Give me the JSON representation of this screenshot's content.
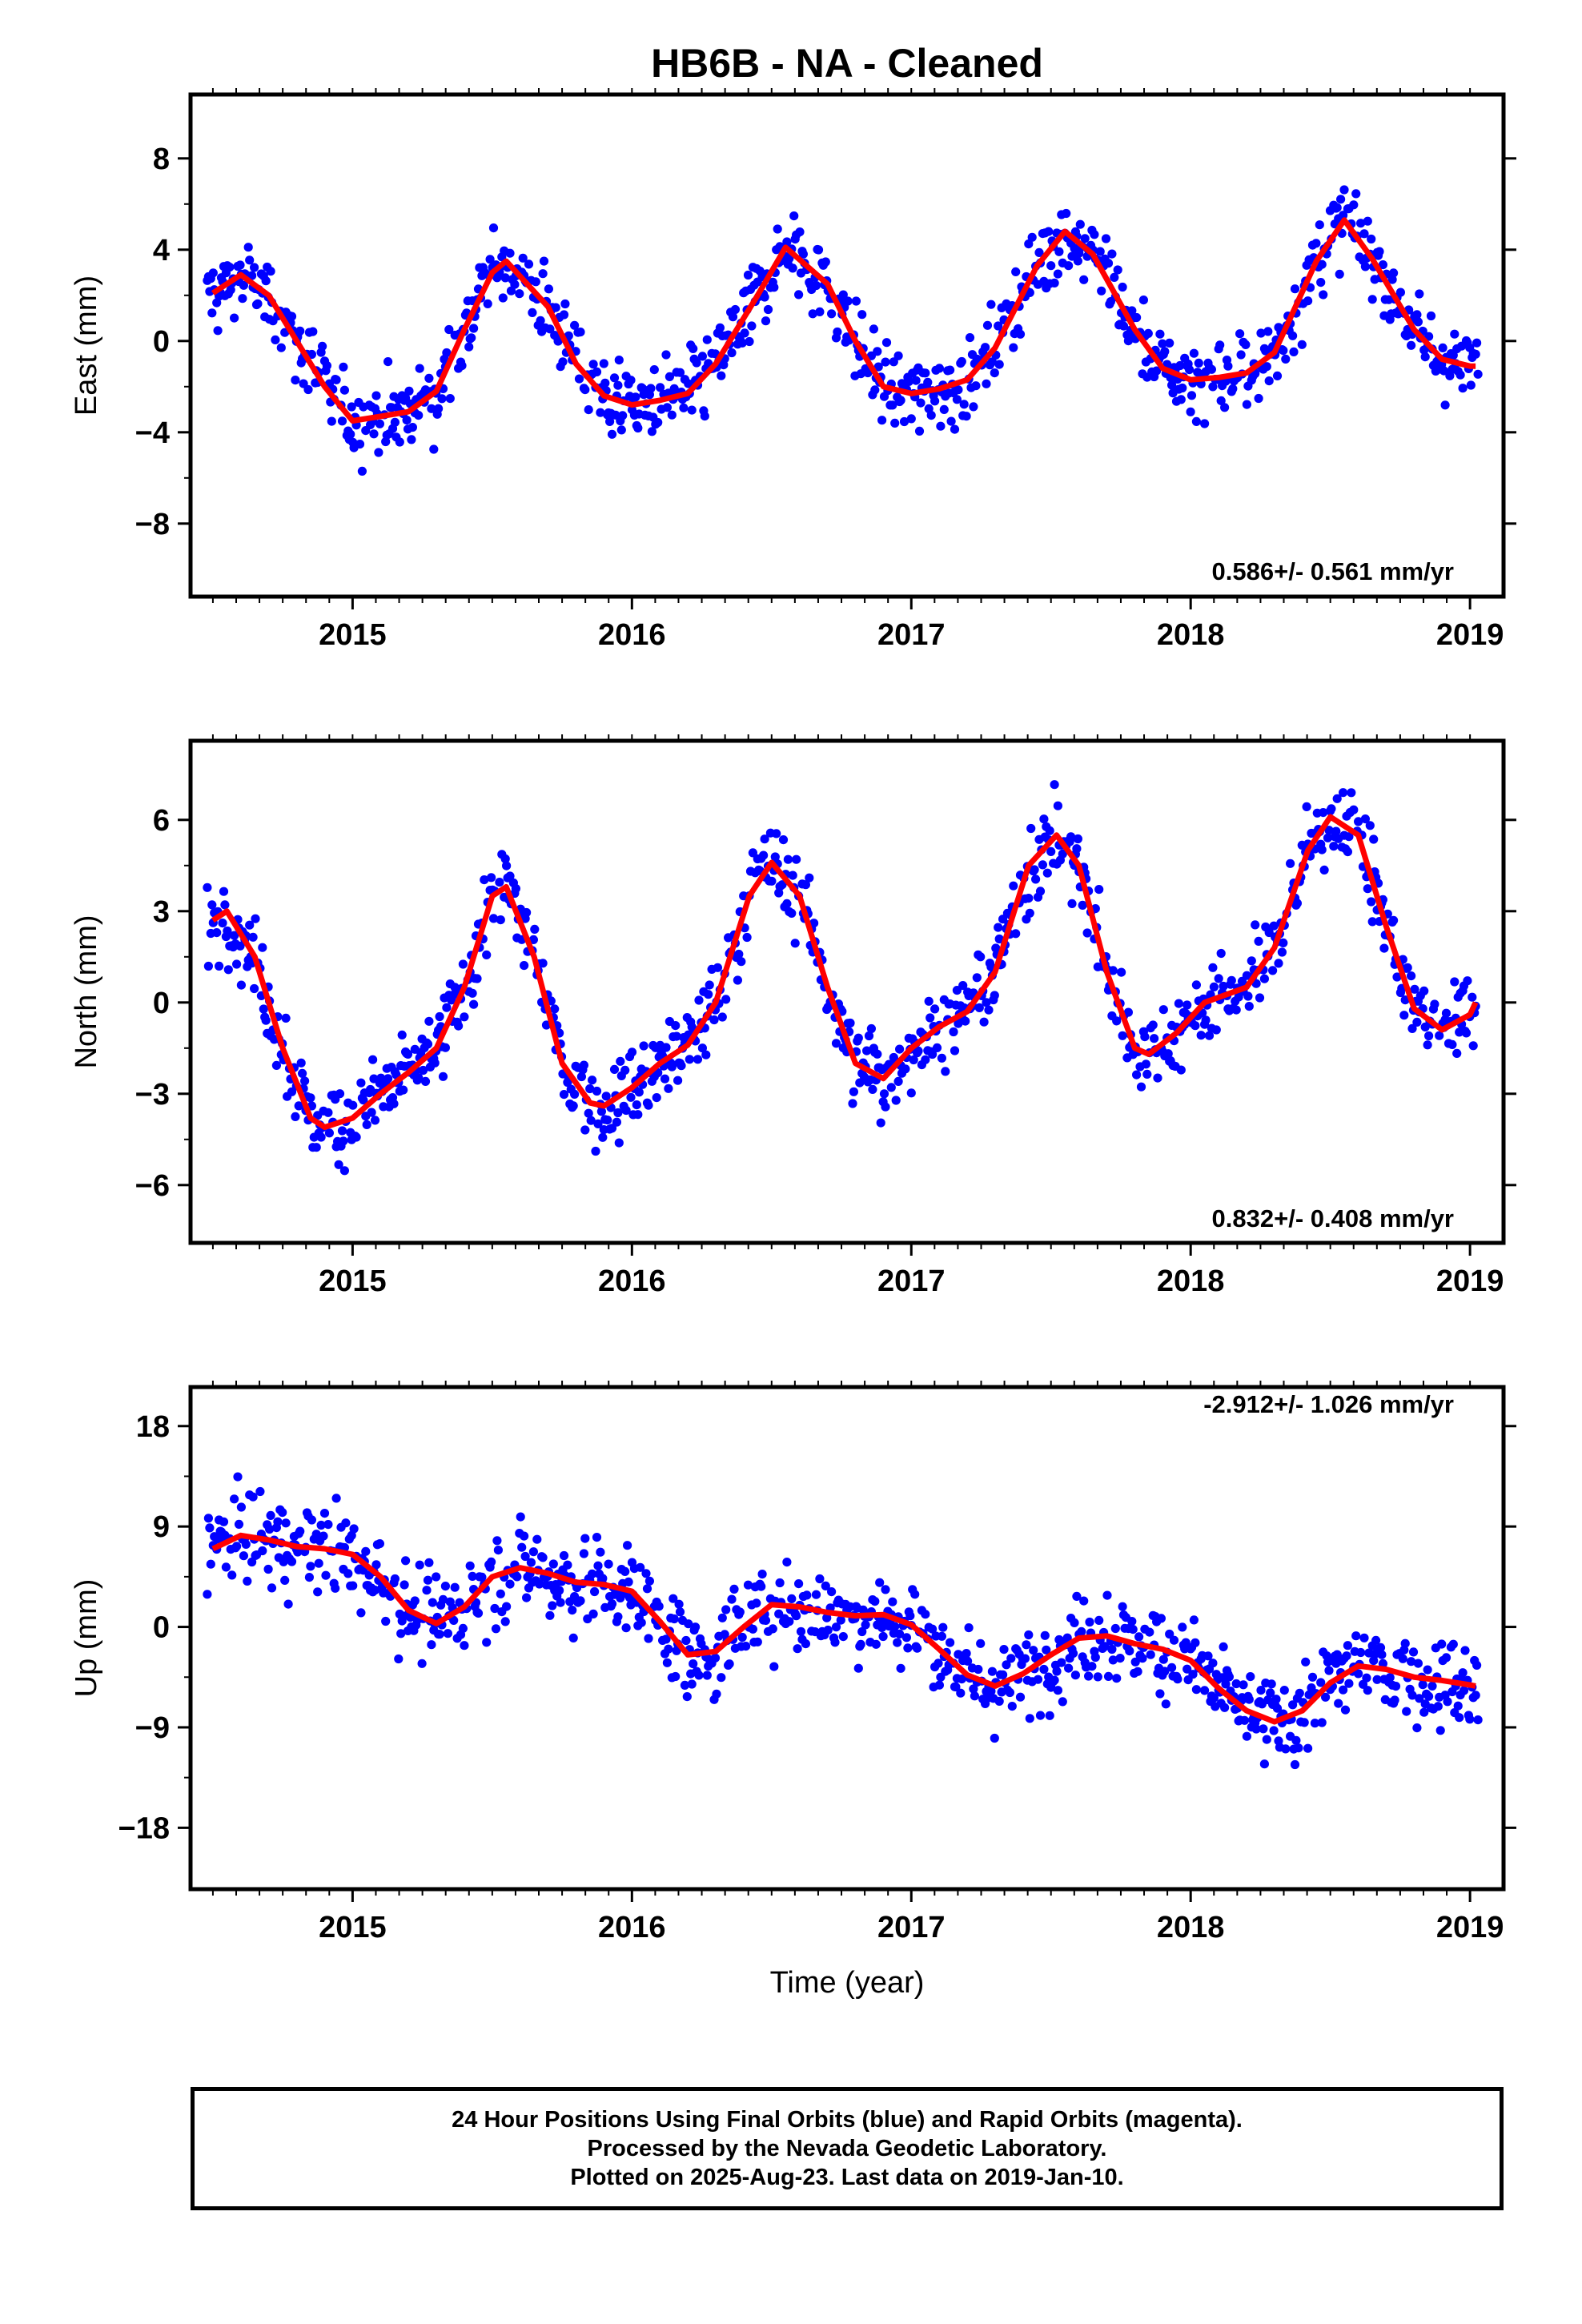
{
  "title": "HB6B  - NA - Cleaned",
  "xlabel": "Time (year)",
  "caption": [
    "24 Hour Positions Using Final Orbits (blue) and Rapid Orbits (magenta).",
    "Processed by the Nevada Geodetic Laboratory.",
    "Plotted on 2025-Aug-23. Last data on 2019-Jan-10."
  ],
  "colors": {
    "points": "#0000ff",
    "fit": "#ff0000",
    "axes": "#000000"
  },
  "chart_data": [
    {
      "type": "scatter",
      "ylabel": "East (mm)",
      "rate_text": "0.586+/- 0.561 mm/yr",
      "xlim": [
        2014.42,
        2019.12
      ],
      "ylim": [
        -11.2,
        10.8
      ],
      "xticks": [
        2015,
        2016,
        2017,
        2018,
        2019
      ],
      "yticks": [
        -8,
        -4,
        0,
        4,
        8
      ],
      "yticklabels": [
        "−8",
        "−4",
        "0",
        "4",
        "8"
      ],
      "series": [
        {
          "values": [
            [
              2014.5,
              2.1
            ],
            [
              2014.6,
              2.9
            ],
            [
              2014.7,
              2.0
            ],
            [
              2014.8,
              0.0
            ],
            [
              2014.9,
              -2.0
            ],
            [
              2015.0,
              -3.5
            ],
            [
              2015.1,
              -3.3
            ],
            [
              2015.2,
              -3.1
            ],
            [
              2015.3,
              -2.2
            ],
            [
              2015.4,
              0.5
            ],
            [
              2015.5,
              3.0
            ],
            [
              2015.55,
              3.5
            ],
            [
              2015.7,
              1.5
            ],
            [
              2015.8,
              -1.0
            ],
            [
              2015.9,
              -2.4
            ],
            [
              2016.0,
              -2.8
            ],
            [
              2016.1,
              -2.6
            ],
            [
              2016.2,
              -2.3
            ],
            [
              2016.3,
              -1.0
            ],
            [
              2016.45,
              2.0
            ],
            [
              2016.55,
              4.1
            ],
            [
              2016.7,
              2.5
            ],
            [
              2016.8,
              0.0
            ],
            [
              2016.9,
              -2.0
            ],
            [
              2017.0,
              -2.3
            ],
            [
              2017.1,
              -2.1
            ],
            [
              2017.2,
              -1.7
            ],
            [
              2017.3,
              -0.3
            ],
            [
              2017.45,
              3.3
            ],
            [
              2017.55,
              4.8
            ],
            [
              2017.65,
              3.8
            ],
            [
              2017.8,
              0.5
            ],
            [
              2017.9,
              -1.2
            ],
            [
              2018.0,
              -1.7
            ],
            [
              2018.1,
              -1.6
            ],
            [
              2018.2,
              -1.4
            ],
            [
              2018.3,
              -0.5
            ],
            [
              2018.45,
              3.5
            ],
            [
              2018.55,
              5.3
            ],
            [
              2018.65,
              3.6
            ],
            [
              2018.8,
              0.5
            ],
            [
              2018.9,
              -0.8
            ],
            [
              2019.0,
              -1.1
            ],
            [
              2019.02,
              -1.1
            ]
          ]
        }
      ],
      "points": {
        "period": 1.0,
        "amplitude": 3.0,
        "phase": 0.58,
        "spread": 1.6,
        "base": 0.0,
        "trend": 0.586,
        "noise_scale": 1.0
      }
    },
    {
      "type": "scatter",
      "ylabel": "North (mm)",
      "rate_text": "0.832+/- 0.408 mm/yr",
      "xlim": [
        2014.42,
        2019.12
      ],
      "ylim": [
        -7.9,
        8.6
      ],
      "xticks": [
        2015,
        2016,
        2017,
        2018,
        2019
      ],
      "yticks": [
        -6,
        -3,
        0,
        3,
        6
      ],
      "yticklabels": [
        "−6",
        "−3",
        "0",
        "3",
        "6"
      ],
      "series": [
        {
          "values": [
            [
              2014.5,
              2.7
            ],
            [
              2014.55,
              3.0
            ],
            [
              2014.65,
              1.5
            ],
            [
              2014.75,
              -1.5
            ],
            [
              2014.85,
              -3.8
            ],
            [
              2014.9,
              -4.1
            ],
            [
              2015.0,
              -3.8
            ],
            [
              2015.1,
              -3.0
            ],
            [
              2015.2,
              -2.3
            ],
            [
              2015.3,
              -1.5
            ],
            [
              2015.4,
              0.5
            ],
            [
              2015.5,
              3.5
            ],
            [
              2015.55,
              3.8
            ],
            [
              2015.65,
              1.5
            ],
            [
              2015.75,
              -2.0
            ],
            [
              2015.85,
              -3.3
            ],
            [
              2015.9,
              -3.4
            ],
            [
              2016.0,
              -2.8
            ],
            [
              2016.1,
              -2.0
            ],
            [
              2016.2,
              -1.4
            ],
            [
              2016.3,
              0.0
            ],
            [
              2016.42,
              3.5
            ],
            [
              2016.5,
              4.6
            ],
            [
              2016.6,
              3.5
            ],
            [
              2016.7,
              0.5
            ],
            [
              2016.8,
              -2.0
            ],
            [
              2016.9,
              -2.5
            ],
            [
              2017.0,
              -1.5
            ],
            [
              2017.1,
              -0.8
            ],
            [
              2017.2,
              -0.3
            ],
            [
              2017.3,
              1.0
            ],
            [
              2017.42,
              4.5
            ],
            [
              2017.52,
              5.5
            ],
            [
              2017.6,
              4.5
            ],
            [
              2017.7,
              1.0
            ],
            [
              2017.8,
              -1.5
            ],
            [
              2017.85,
              -1.7
            ],
            [
              2017.95,
              -1.0
            ],
            [
              2018.05,
              0.0
            ],
            [
              2018.2,
              0.5
            ],
            [
              2018.3,
              1.8
            ],
            [
              2018.42,
              5.0
            ],
            [
              2018.5,
              6.1
            ],
            [
              2018.6,
              5.5
            ],
            [
              2018.7,
              2.5
            ],
            [
              2018.8,
              -0.2
            ],
            [
              2018.9,
              -0.9
            ],
            [
              2019.0,
              -0.4
            ],
            [
              2019.02,
              0.0
            ]
          ]
        }
      ],
      "points": {
        "period": 1.0,
        "amplitude": 4.0,
        "phase": 0.52,
        "spread": 1.3,
        "base": 0.0,
        "trend": 0.832,
        "noise_scale": 1.0
      }
    },
    {
      "type": "scatter",
      "ylabel": "Up (mm)",
      "rate_text": "-2.912+/- 1.026 mm/yr",
      "xlim": [
        2014.42,
        2019.12
      ],
      "ylim": [
        -23.5,
        21.5
      ],
      "xticks": [
        2015,
        2016,
        2017,
        2018,
        2019
      ],
      "yticks": [
        -18,
        -9,
        0,
        9,
        18
      ],
      "yticklabels": [
        "−18",
        "−9",
        "0",
        "9",
        "18"
      ],
      "series": [
        {
          "values": [
            [
              2014.5,
              7.0
            ],
            [
              2014.6,
              8.2
            ],
            [
              2014.7,
              7.8
            ],
            [
              2014.8,
              7.2
            ],
            [
              2014.9,
              7.0
            ],
            [
              2015.0,
              6.5
            ],
            [
              2015.1,
              4.5
            ],
            [
              2015.2,
              1.5
            ],
            [
              2015.3,
              0.3
            ],
            [
              2015.4,
              1.8
            ],
            [
              2015.5,
              4.5
            ],
            [
              2015.6,
              5.3
            ],
            [
              2015.7,
              4.8
            ],
            [
              2015.8,
              4.0
            ],
            [
              2015.9,
              3.8
            ],
            [
              2016.0,
              3.2
            ],
            [
              2016.1,
              0.5
            ],
            [
              2016.2,
              -2.5
            ],
            [
              2016.3,
              -2.2
            ],
            [
              2016.4,
              0.0
            ],
            [
              2016.5,
              2.0
            ],
            [
              2016.6,
              1.8
            ],
            [
              2016.7,
              1.3
            ],
            [
              2016.8,
              1.0
            ],
            [
              2016.9,
              1.1
            ],
            [
              2017.0,
              0.2
            ],
            [
              2017.1,
              -2.0
            ],
            [
              2017.2,
              -4.3
            ],
            [
              2017.3,
              -5.3
            ],
            [
              2017.4,
              -4.2
            ],
            [
              2017.5,
              -2.5
            ],
            [
              2017.6,
              -1.0
            ],
            [
              2017.7,
              -0.8
            ],
            [
              2017.8,
              -1.5
            ],
            [
              2017.9,
              -2.0
            ],
            [
              2018.0,
              -3.0
            ],
            [
              2018.1,
              -5.5
            ],
            [
              2018.2,
              -7.5
            ],
            [
              2018.3,
              -8.5
            ],
            [
              2018.4,
              -7.5
            ],
            [
              2018.5,
              -5.0
            ],
            [
              2018.6,
              -3.5
            ],
            [
              2018.7,
              -3.8
            ],
            [
              2018.8,
              -4.5
            ],
            [
              2018.9,
              -4.8
            ],
            [
              2019.0,
              -5.2
            ],
            [
              2019.02,
              -5.3
            ]
          ]
        }
      ],
      "points": {
        "period": 1.0,
        "amplitude": 2.0,
        "phase": 0.6,
        "spread": 3.8,
        "base": 0.0,
        "trend": -2.912,
        "noise_scale": 1.0
      }
    }
  ]
}
